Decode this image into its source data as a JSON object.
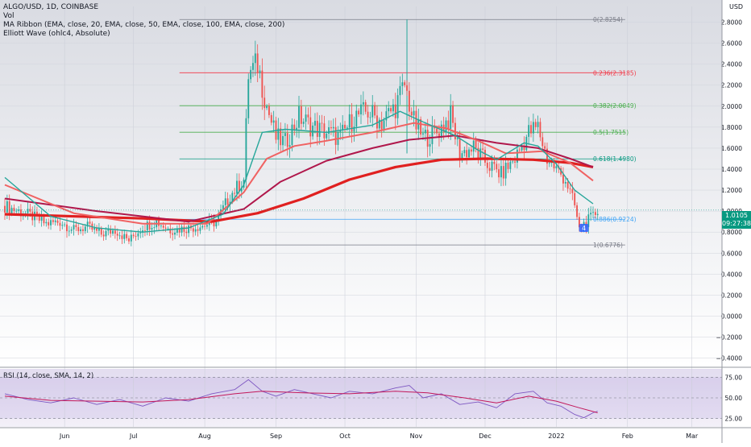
{
  "legend": {
    "symbol": "ALGO/USD, 1D, COINBASE",
    "vol": "Vol",
    "ma_ribbon": "MA Ribbon (EMA, close, 20, EMA, close, 50, EMA, close, 100, EMA, close, 200)",
    "elliott": "Elliott Wave (ohlc4, Absolute)"
  },
  "currency": "USD",
  "rsi_label": "RSI (14, close, SMA, 14, 2)",
  "current_price": {
    "value": "1.0105",
    "countdown": "09:27:38"
  },
  "colors": {
    "up": "#26a69a",
    "down": "#ef5350",
    "ema20": "#26a69a",
    "ema50": "#f06262",
    "ema100": "#b0174b",
    "ema200": "#e02020",
    "rsi": "#7e57c2",
    "rsi_ma": "#c2185b",
    "fib_red": "#f23645",
    "fib_green": "#4caf50",
    "fib_teal": "#089981",
    "fib_blue": "#42a5f5",
    "fib_gray": "#787b86"
  },
  "chart_data": [
    {
      "type": "candlestick",
      "title": "ALGO/USD, 1D, COINBASE",
      "x_labels": [
        "Jun",
        "Jul",
        "Aug",
        "Sep",
        "Oct",
        "Nov",
        "Dec",
        "2022",
        "Feb",
        "Mar"
      ],
      "ylim": [
        -0.48,
        2.95
      ],
      "y_ticks": [
        "2.8000",
        "2.6000",
        "2.4000",
        "2.2000",
        "2.0000",
        "1.8000",
        "1.6000",
        "1.4000",
        "1.2000",
        "1.0000",
        "0.8000",
        "0.6000",
        "0.4000",
        "0.2000",
        "0.0000",
        "−0.2000",
        "−0.4000"
      ],
      "y_tick_values": [
        2.8,
        2.6,
        2.4,
        2.2,
        2.0,
        1.8,
        1.6,
        1.4,
        1.2,
        1.0,
        0.8,
        0.6,
        0.4,
        0.2,
        0.0,
        -0.2,
        -0.4
      ],
      "close_series": {
        "points": [
          [
            0,
            1.05
          ],
          [
            6,
            1.0
          ],
          [
            12,
            0.95
          ],
          [
            18,
            0.88
          ],
          [
            24,
            0.9
          ],
          [
            30,
            0.82
          ],
          [
            36,
            0.85
          ],
          [
            42,
            0.78
          ],
          [
            48,
            0.82
          ],
          [
            54,
            0.72
          ],
          [
            60,
            0.85
          ],
          [
            66,
            0.9
          ],
          [
            72,
            0.82
          ],
          [
            80,
            0.84
          ],
          [
            86,
            0.86
          ],
          [
            92,
            0.9
          ],
          [
            98,
            1.15
          ],
          [
            104,
            1.3
          ],
          [
            106,
            2.3
          ],
          [
            110,
            2.4
          ],
          [
            114,
            2.0
          ],
          [
            118,
            1.7
          ],
          [
            122,
            1.65
          ],
          [
            128,
            1.9
          ],
          [
            134,
            1.8
          ],
          [
            140,
            1.75
          ],
          [
            146,
            1.7
          ],
          [
            152,
            1.9
          ],
          [
            158,
            1.95
          ],
          [
            164,
            1.85
          ],
          [
            170,
            2.0
          ],
          [
            174,
            2.2
          ],
          [
            178,
            1.85
          ],
          [
            182,
            1.7
          ],
          [
            188,
            1.75
          ],
          [
            194,
            1.9
          ],
          [
            198,
            1.55
          ],
          [
            204,
            1.6
          ],
          [
            210,
            1.45
          ],
          [
            216,
            1.35
          ],
          [
            222,
            1.5
          ],
          [
            228,
            1.75
          ],
          [
            232,
            1.8
          ],
          [
            236,
            1.5
          ],
          [
            240,
            1.4
          ],
          [
            244,
            1.3
          ],
          [
            248,
            1.05
          ],
          [
            250,
            0.82
          ],
          [
            252,
            0.88
          ],
          [
            256,
            0.95
          ],
          [
            258,
            1.01
          ]
        ]
      },
      "ema20": [
        [
          0,
          1.32
        ],
        [
          20,
          0.95
        ],
        [
          40,
          0.84
        ],
        [
          60,
          0.8
        ],
        [
          80,
          0.84
        ],
        [
          95,
          0.97
        ],
        [
          104,
          1.25
        ],
        [
          112,
          1.75
        ],
        [
          122,
          1.78
        ],
        [
          140,
          1.75
        ],
        [
          160,
          1.82
        ],
        [
          172,
          1.95
        ],
        [
          182,
          1.85
        ],
        [
          196,
          1.72
        ],
        [
          206,
          1.58
        ],
        [
          214,
          1.49
        ],
        [
          226,
          1.65
        ],
        [
          232,
          1.62
        ],
        [
          240,
          1.45
        ],
        [
          248,
          1.2
        ],
        [
          256,
          1.07
        ]
      ],
      "ema50": [
        [
          0,
          1.25
        ],
        [
          30,
          0.98
        ],
        [
          60,
          0.88
        ],
        [
          88,
          0.88
        ],
        [
          104,
          1.18
        ],
        [
          114,
          1.5
        ],
        [
          126,
          1.62
        ],
        [
          140,
          1.67
        ],
        [
          160,
          1.75
        ],
        [
          178,
          1.84
        ],
        [
          192,
          1.79
        ],
        [
          206,
          1.67
        ],
        [
          218,
          1.55
        ],
        [
          234,
          1.57
        ],
        [
          246,
          1.46
        ],
        [
          256,
          1.29
        ]
      ],
      "ema100": [
        [
          0,
          1.12
        ],
        [
          40,
          1.0
        ],
        [
          80,
          0.9
        ],
        [
          104,
          1.02
        ],
        [
          120,
          1.28
        ],
        [
          140,
          1.48
        ],
        [
          160,
          1.6
        ],
        [
          176,
          1.68
        ],
        [
          196,
          1.72
        ],
        [
          214,
          1.65
        ],
        [
          232,
          1.6
        ],
        [
          246,
          1.5
        ],
        [
          256,
          1.42
        ]
      ],
      "ema200": [
        [
          0,
          0.97
        ],
        [
          60,
          0.93
        ],
        [
          90,
          0.9
        ],
        [
          110,
          0.98
        ],
        [
          130,
          1.12
        ],
        [
          150,
          1.3
        ],
        [
          170,
          1.42
        ],
        [
          190,
          1.49
        ],
        [
          210,
          1.5
        ],
        [
          230,
          1.49
        ],
        [
          246,
          1.46
        ],
        [
          256,
          1.42
        ]
      ],
      "fib_levels": [
        {
          "label": "0(2.8254)",
          "value": 2.8254,
          "color": "#787b86"
        },
        {
          "label": "0.236(2.3185)",
          "value": 2.3185,
          "color": "#f23645"
        },
        {
          "label": "0.382(2.0049)",
          "value": 2.0049,
          "color": "#4caf50"
        },
        {
          "label": "0.5(1.7515)",
          "value": 1.7515,
          "color": "#4caf50"
        },
        {
          "label": "0.618(1.4980)",
          "value": 1.498,
          "color": "#089981"
        },
        {
          "label": "0.886(0.9224)",
          "value": 0.9224,
          "color": "#42a5f5"
        },
        {
          "label": "1(0.6776)",
          "value": 0.6776,
          "color": "#787b86"
        }
      ],
      "elliott_marker": "4"
    },
    {
      "type": "line",
      "title": "RSI (14, close, SMA, 14, 2)",
      "ylim": [
        15,
        85
      ],
      "y_ticks": [
        "75.00",
        "50.00",
        "25.00"
      ],
      "y_tick_values": [
        75,
        50,
        25
      ],
      "rsi": [
        [
          0,
          55
        ],
        [
          10,
          48
        ],
        [
          20,
          44
        ],
        [
          30,
          50
        ],
        [
          40,
          42
        ],
        [
          50,
          48
        ],
        [
          60,
          40
        ],
        [
          70,
          50
        ],
        [
          80,
          46
        ],
        [
          90,
          55
        ],
        [
          100,
          60
        ],
        [
          106,
          72
        ],
        [
          112,
          58
        ],
        [
          118,
          52
        ],
        [
          126,
          60
        ],
        [
          134,
          55
        ],
        [
          142,
          50
        ],
        [
          150,
          58
        ],
        [
          160,
          55
        ],
        [
          170,
          62
        ],
        [
          176,
          65
        ],
        [
          182,
          50
        ],
        [
          190,
          55
        ],
        [
          198,
          42
        ],
        [
          206,
          45
        ],
        [
          214,
          38
        ],
        [
          222,
          55
        ],
        [
          230,
          58
        ],
        [
          236,
          44
        ],
        [
          242,
          40
        ],
        [
          248,
          30
        ],
        [
          252,
          26
        ],
        [
          256,
          32
        ],
        [
          258,
          34
        ]
      ],
      "rsi_ma": [
        [
          0,
          52
        ],
        [
          20,
          47
        ],
        [
          40,
          46
        ],
        [
          60,
          45
        ],
        [
          80,
          48
        ],
        [
          100,
          55
        ],
        [
          112,
          58
        ],
        [
          130,
          56
        ],
        [
          150,
          55
        ],
        [
          170,
          58
        ],
        [
          184,
          56
        ],
        [
          200,
          50
        ],
        [
          214,
          44
        ],
        [
          228,
          52
        ],
        [
          240,
          46
        ],
        [
          250,
          38
        ],
        [
          258,
          32
        ]
      ]
    }
  ]
}
